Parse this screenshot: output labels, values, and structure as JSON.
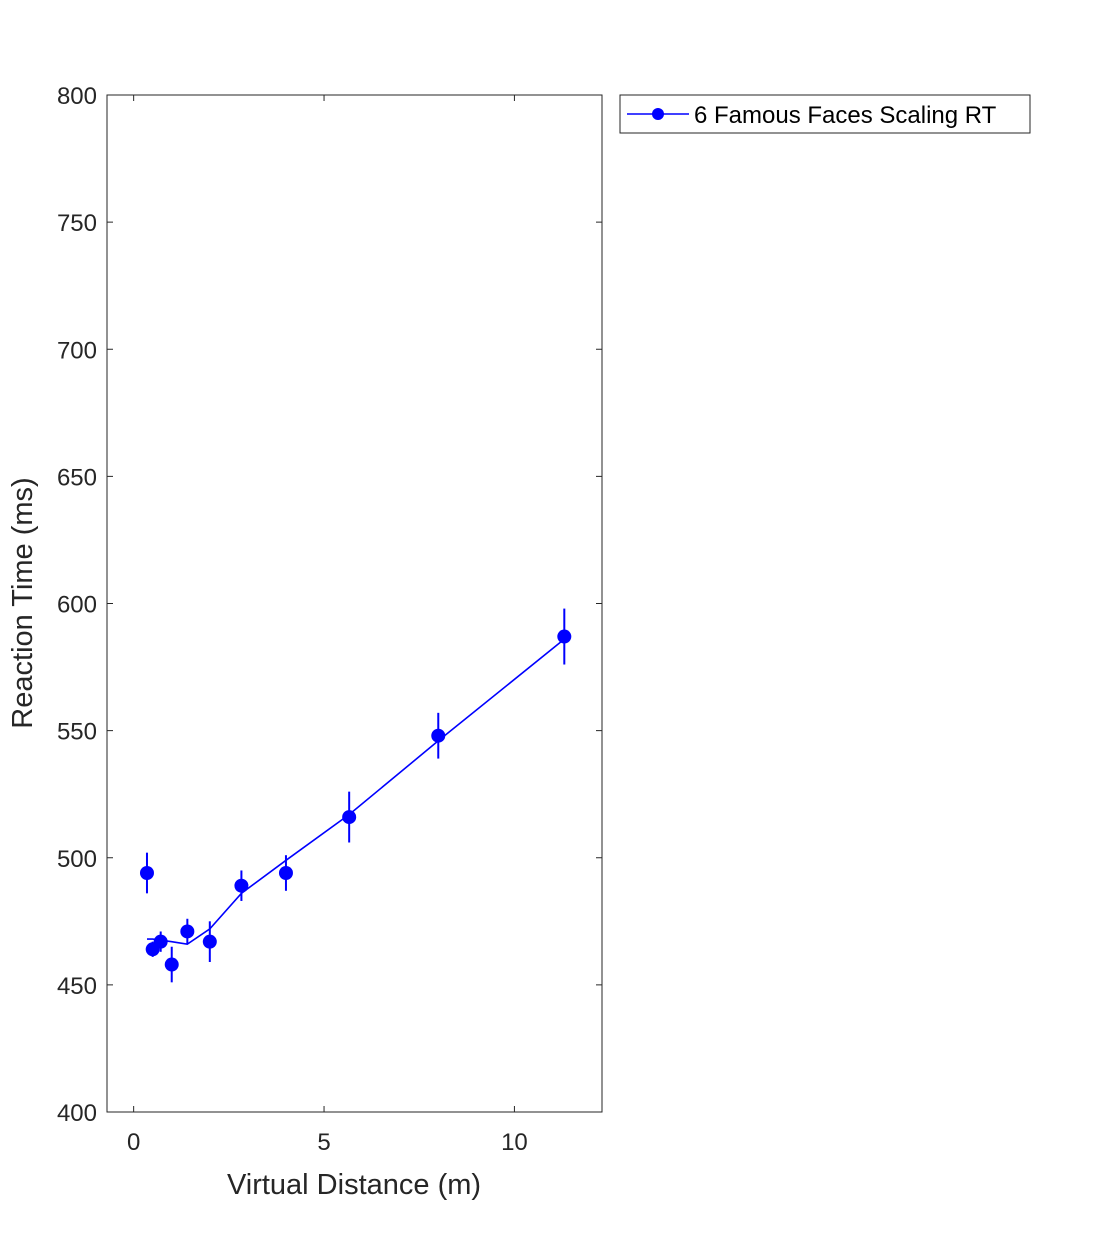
{
  "chart_data": {
    "type": "line",
    "xlabel": "Virtual Distance (m)",
    "ylabel": "Reaction Time (ms)",
    "xlim": [
      -0.7,
      12.3
    ],
    "ylim": [
      400,
      800
    ],
    "xticks": [
      0,
      5,
      10
    ],
    "yticks": [
      400,
      450,
      500,
      550,
      600,
      650,
      700,
      750,
      800
    ],
    "grid": false,
    "legend_position": "outside-top-right",
    "color": "#0000ff",
    "series": [
      {
        "name": "6 Famous Faces Scaling RT",
        "x": [
          0.35,
          0.5,
          0.71,
          1.0,
          1.41,
          2.0,
          2.83,
          4.0,
          5.66,
          8.0,
          11.31
        ],
        "y": [
          494,
          464,
          467,
          458,
          471,
          467,
          489,
          494,
          516,
          548,
          587
        ],
        "error": [
          8,
          3,
          4,
          7,
          5,
          8,
          6,
          7,
          10,
          9,
          11
        ]
      }
    ],
    "fit_line": {
      "x": [
        0.35,
        0.5,
        1.0,
        1.41,
        2.0,
        2.83,
        4.0,
        5.66,
        8.0,
        11.31
      ],
      "y": [
        468,
        468,
        467,
        466,
        472,
        486,
        499,
        517,
        546,
        586
      ]
    }
  }
}
